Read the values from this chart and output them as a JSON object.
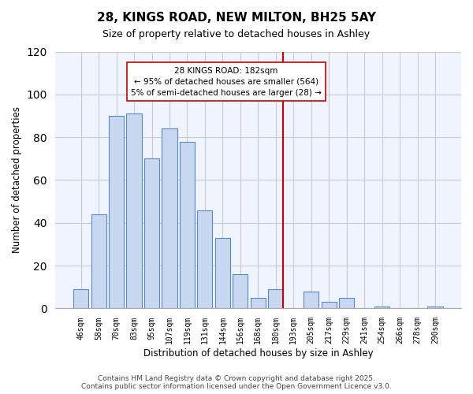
{
  "title": "28, KINGS ROAD, NEW MILTON, BH25 5AY",
  "subtitle": "Size of property relative to detached houses in Ashley",
  "xlabel": "Distribution of detached houses by size in Ashley",
  "ylabel": "Number of detached properties",
  "bar_labels": [
    "46sqm",
    "58sqm",
    "70sqm",
    "83sqm",
    "95sqm",
    "107sqm",
    "119sqm",
    "131sqm",
    "144sqm",
    "156sqm",
    "168sqm",
    "180sqm",
    "193sqm",
    "205sqm",
    "217sqm",
    "229sqm",
    "241sqm",
    "254sqm",
    "266sqm",
    "278sqm",
    "290sqm"
  ],
  "bar_values": [
    9,
    44,
    90,
    91,
    70,
    84,
    78,
    46,
    33,
    16,
    5,
    9,
    0,
    8,
    3,
    5,
    0,
    1,
    0,
    0,
    1
  ],
  "bar_color": "#c8d8f0",
  "bar_edge_color": "#5588cc",
  "vline_color": "#cc0000",
  "ylim": [
    0,
    120
  ],
  "yticks": [
    0,
    20,
    40,
    60,
    80,
    100,
    120
  ],
  "annotation_title": "28 KINGS ROAD: 182sqm",
  "annotation_line1": "← 95% of detached houses are smaller (564)",
  "annotation_line2": "5% of semi-detached houses are larger (28) →",
  "annotation_box_color": "#ffffff",
  "annotation_box_edge": "#cc0000",
  "footer_line1": "Contains HM Land Registry data © Crown copyright and database right 2025.",
  "footer_line2": "Contains public sector information licensed under the Open Government Licence v3.0.",
  "grid_color": "#cccccc",
  "bg_color": "#f0f4ff"
}
